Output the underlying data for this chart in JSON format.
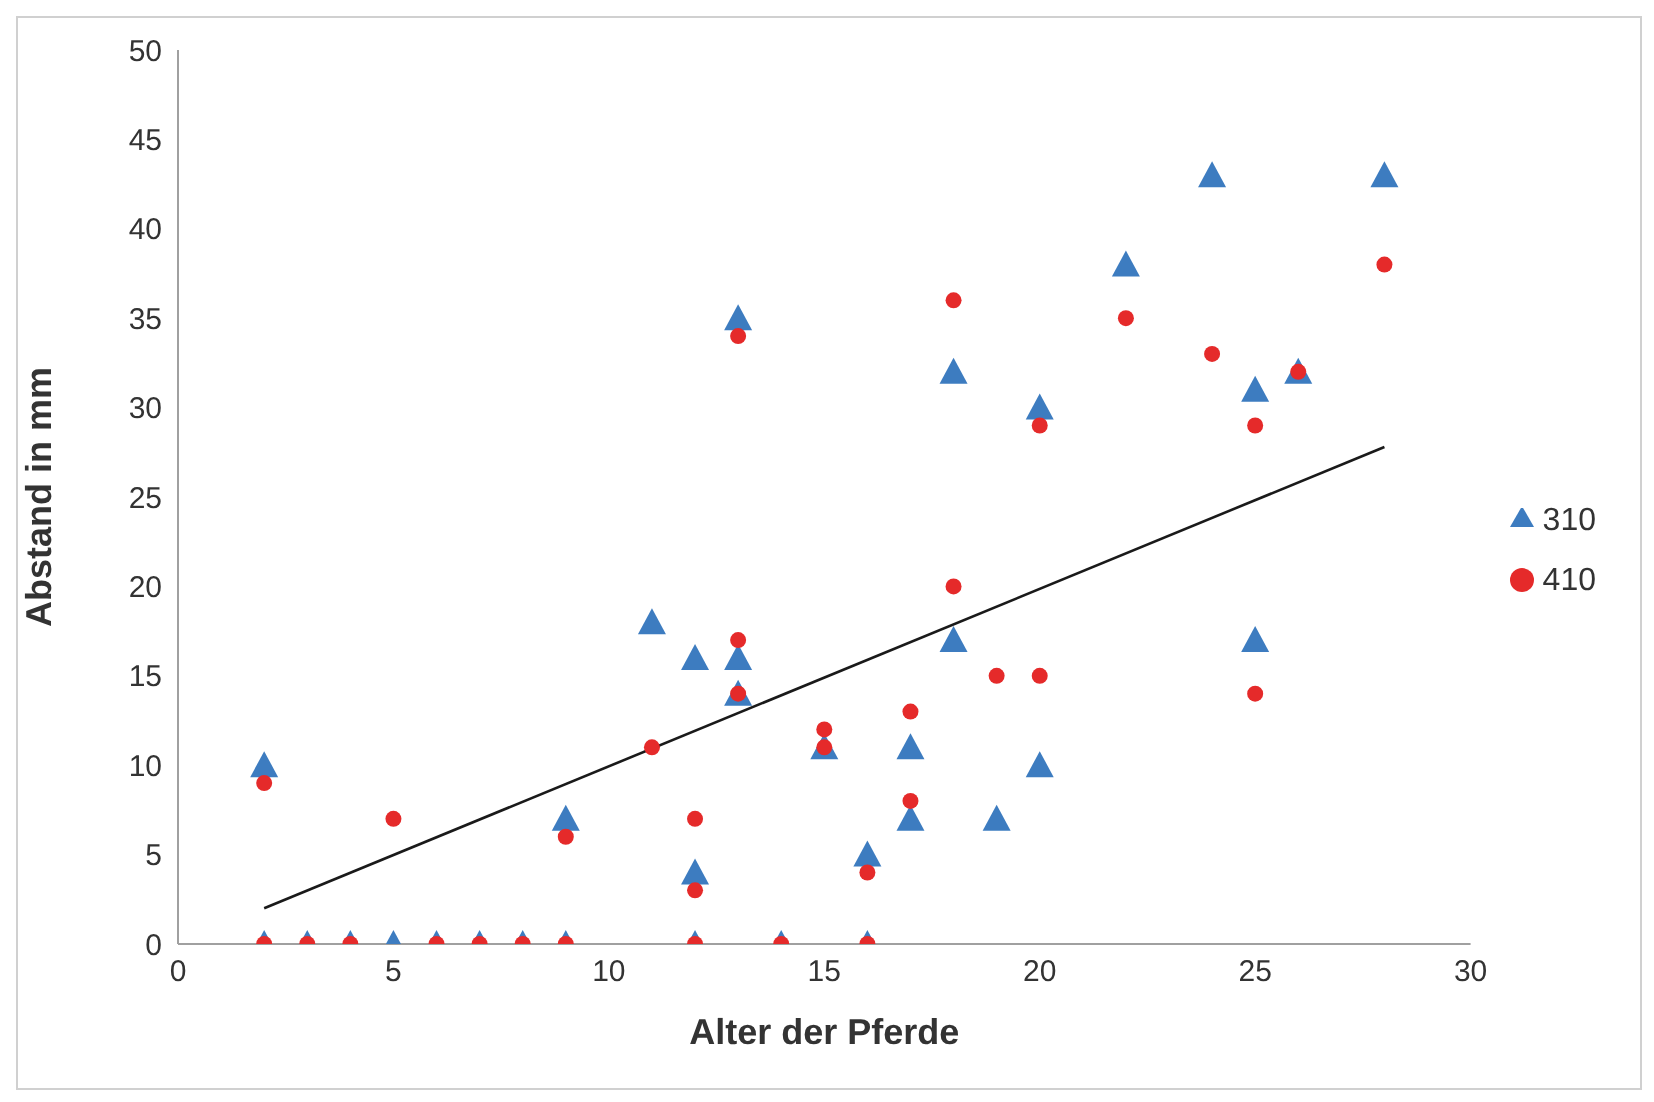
{
  "chart_data": {
    "type": "scatter",
    "xlabel": "Alter der Pferde",
    "ylabel": "Abstand in mm",
    "xlim": [
      0,
      30
    ],
    "xticks": [
      0,
      5,
      10,
      15,
      20,
      25,
      30
    ],
    "ylim": [
      0,
      50
    ],
    "yticks": [
      0,
      5,
      10,
      15,
      20,
      25,
      30,
      35,
      40,
      45,
      50
    ],
    "grid": false,
    "legend": "right",
    "series": [
      {
        "name": "310",
        "color": "#3d7cc0",
        "marker": "triangle",
        "x": [
          2,
          2,
          3,
          4,
          5,
          6,
          7,
          8,
          9,
          9,
          11,
          12,
          12,
          12,
          13,
          13,
          13,
          14,
          15,
          16,
          16,
          17,
          17,
          18,
          18,
          19,
          20,
          20,
          22,
          24,
          25,
          25,
          26,
          28
        ],
        "values": [
          10,
          0,
          0,
          0,
          0,
          0,
          0,
          0,
          0,
          7,
          18,
          16,
          4,
          0,
          35,
          16,
          14,
          0,
          11,
          5,
          0,
          11,
          7,
          32,
          17,
          7,
          30,
          10,
          38,
          43,
          31,
          17,
          32,
          43
        ]
      },
      {
        "name": "410",
        "color": "#e52a2a",
        "marker": "circle",
        "x": [
          2,
          2,
          3,
          4,
          5,
          6,
          7,
          8,
          9,
          9,
          11,
          12,
          12,
          12,
          13,
          13,
          13,
          14,
          15,
          15,
          16,
          16,
          17,
          17,
          18,
          18,
          19,
          20,
          20,
          22,
          24,
          25,
          25,
          26,
          28
        ],
        "values": [
          9,
          0,
          0,
          0,
          7,
          0,
          0,
          0,
          0,
          6,
          11,
          7,
          3,
          0,
          34,
          17,
          14,
          0,
          12,
          11,
          4,
          0,
          13,
          8,
          36,
          20,
          15,
          29,
          15,
          35,
          33,
          29,
          14,
          32,
          38
        ]
      },
      {
        "type": "line",
        "color": "#1a1a1a",
        "x": [
          2,
          28
        ],
        "values": [
          2,
          27.8
        ]
      }
    ]
  }
}
